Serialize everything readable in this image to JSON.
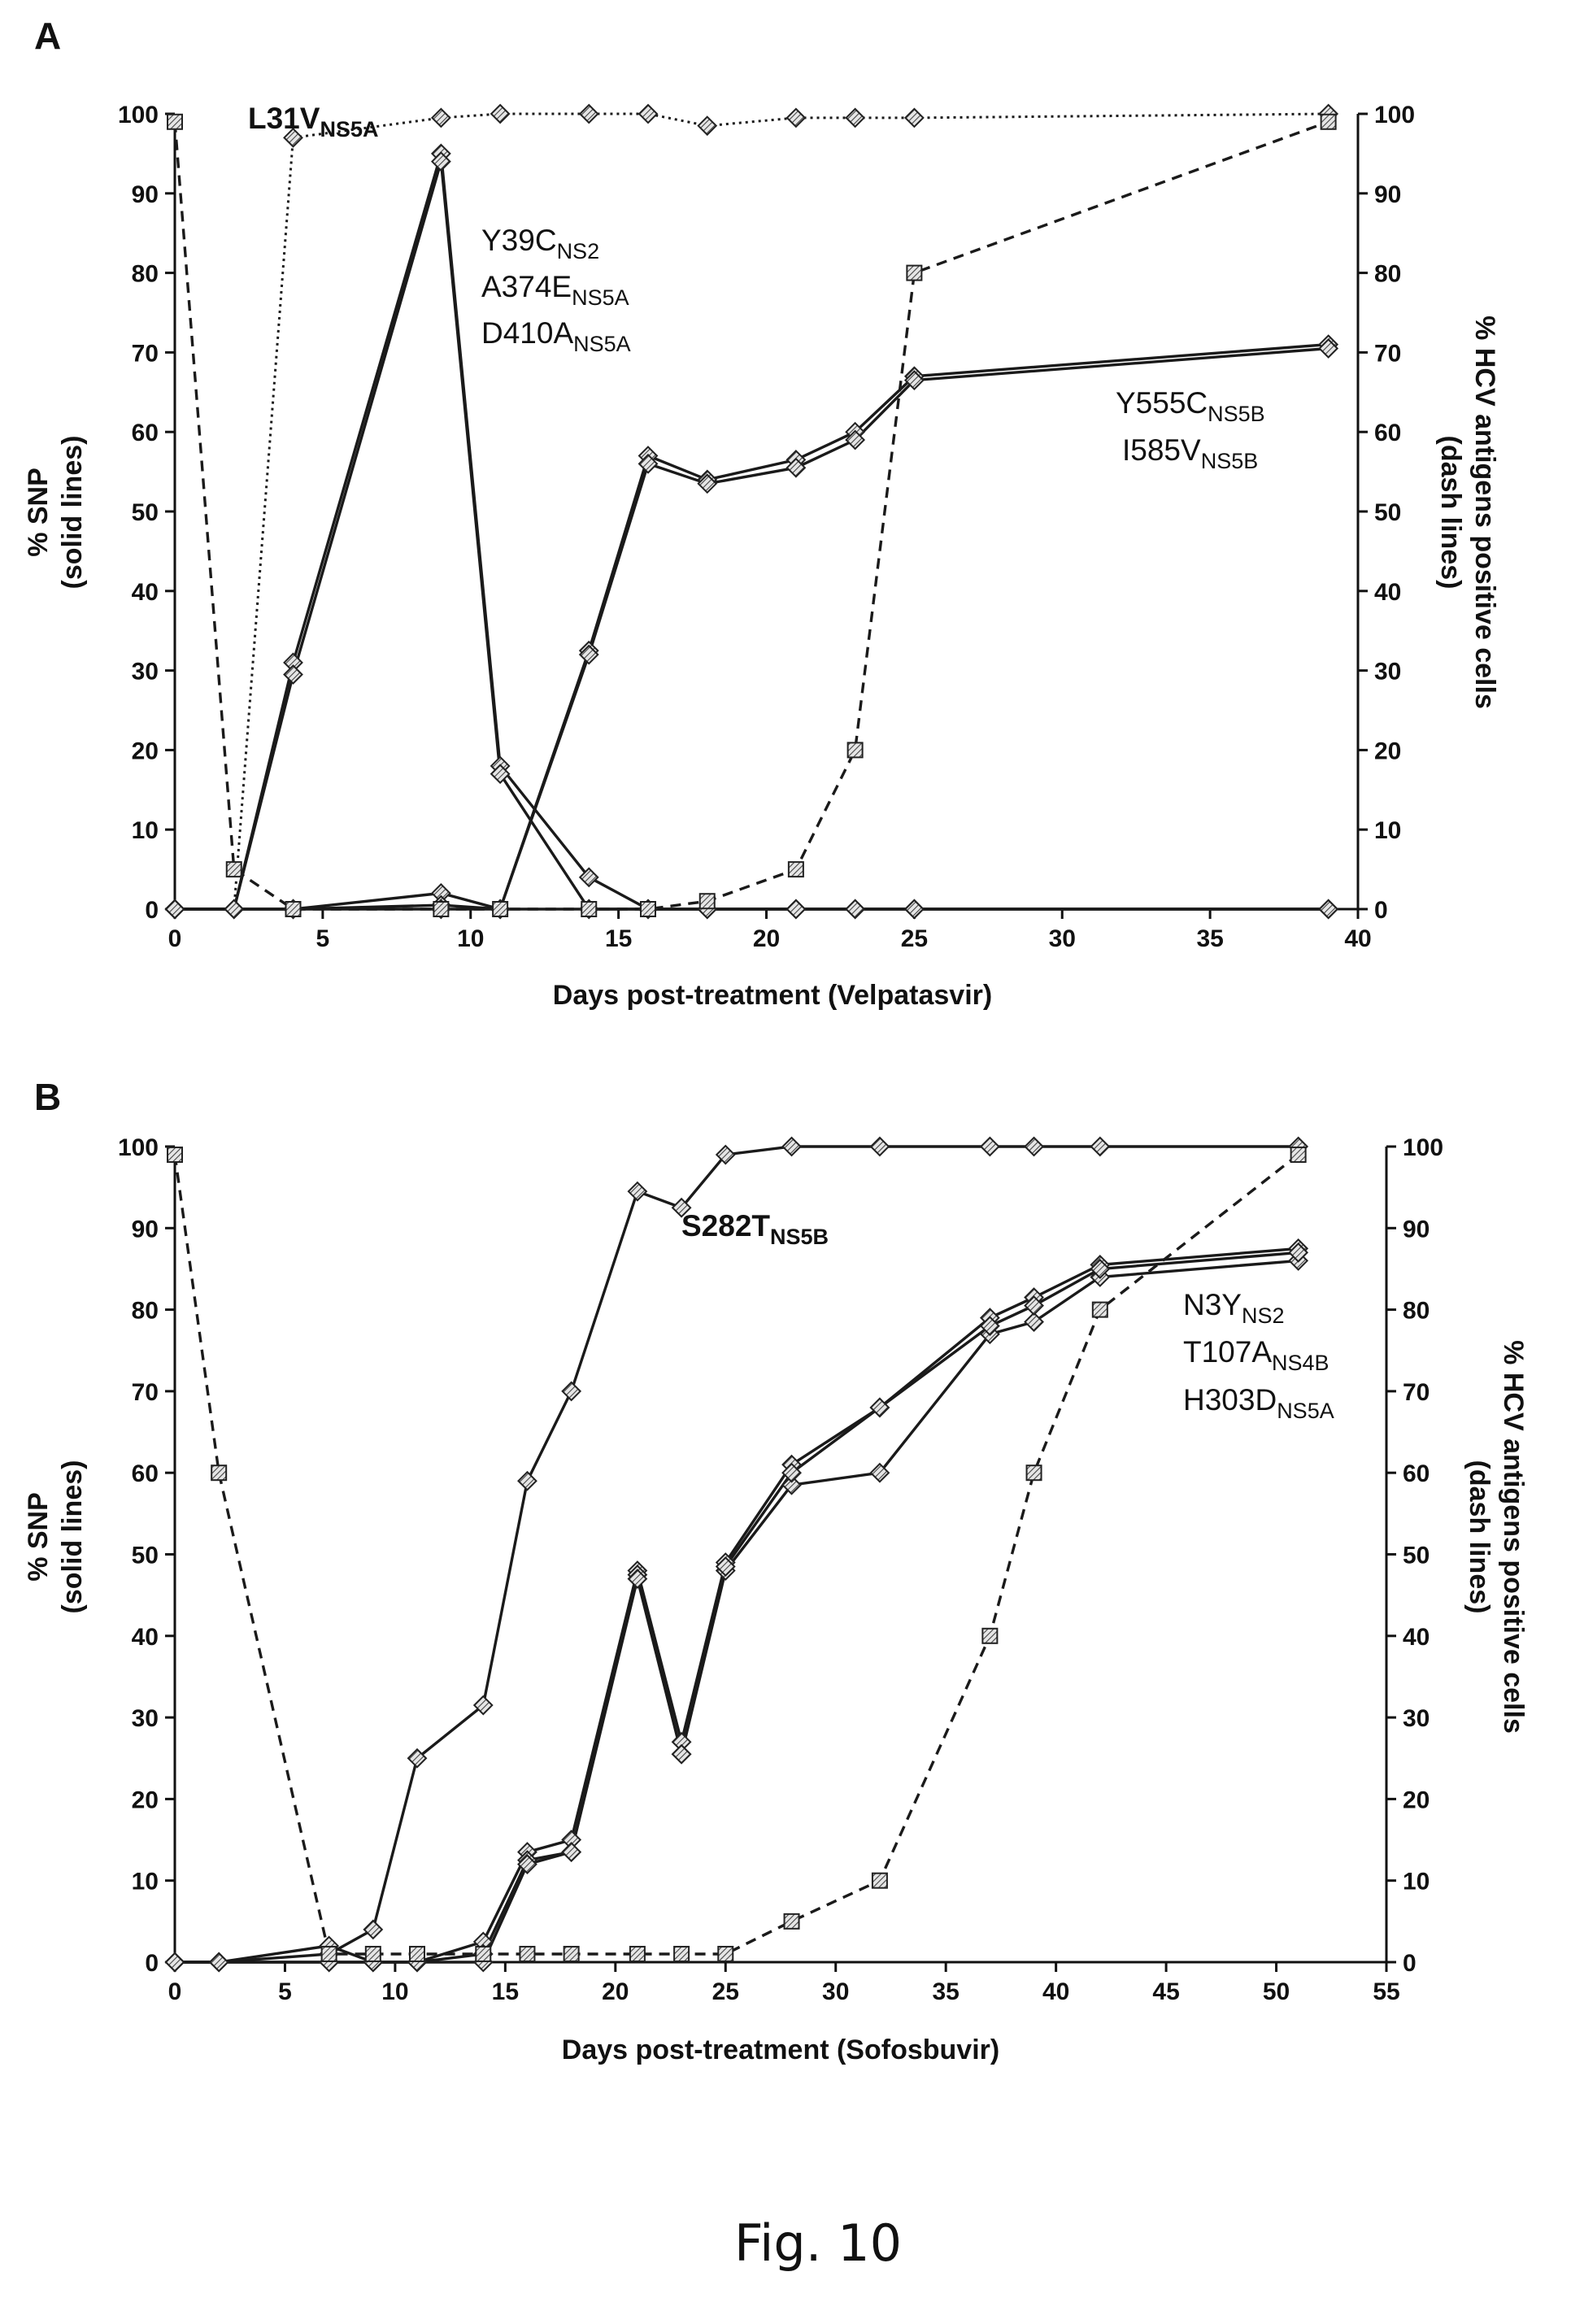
{
  "caption": "Fig. 10",
  "chart_data": [
    {
      "type": "line",
      "panel": "A",
      "xlabel": "Days post-treatment (Velpatasvir)",
      "ylabel": [
        "% SNP",
        "(solid lines)"
      ],
      "y2label": [
        "% HCV antigens positive cells",
        "(dash lines)"
      ],
      "xlim": [
        0,
        40
      ],
      "ylim": [
        0,
        100
      ],
      "y2lim": [
        0,
        100
      ],
      "xticks": [
        0,
        5,
        10,
        15,
        20,
        25,
        30,
        35,
        40
      ],
      "yticks": [
        0,
        10,
        20,
        30,
        40,
        50,
        60,
        70,
        80,
        90,
        100
      ],
      "grid": false,
      "annotations": [
        {
          "id": "l31v",
          "parts": [
            {
              "t": "L31V",
              "sub": false
            },
            {
              "t": "NS5A",
              "sub": true
            }
          ],
          "bold": true
        },
        {
          "id": "y39c",
          "parts": [
            {
              "t": "Y39C",
              "sub": false
            },
            {
              "t": "NS2",
              "sub": true
            }
          ],
          "bold": false
        },
        {
          "id": "a374e",
          "parts": [
            {
              "t": "A374E",
              "sub": false
            },
            {
              "t": "NS5A",
              "sub": true
            }
          ],
          "bold": false
        },
        {
          "id": "d410a",
          "parts": [
            {
              "t": "D410A",
              "sub": false
            },
            {
              "t": "NS5A",
              "sub": true
            }
          ],
          "bold": false
        },
        {
          "id": "y555c",
          "parts": [
            {
              "t": "Y555C",
              "sub": false
            },
            {
              "t": "NS5B",
              "sub": true
            }
          ],
          "bold": false
        },
        {
          "id": "i585v",
          "parts": [
            {
              "t": "I585V",
              "sub": false
            },
            {
              "t": "NS5B",
              "sub": true
            }
          ],
          "bold": false
        }
      ],
      "series": [
        {
          "style": "dotted",
          "marker": "diamond",
          "x": [
            0,
            2,
            4,
            9,
            11,
            14,
            16,
            18,
            21,
            23,
            25,
            39
          ],
          "y": [
            0,
            0,
            97,
            99.5,
            100,
            100,
            100,
            98.5,
            99.5,
            99.5,
            99.5,
            100
          ]
        },
        {
          "style": "solid",
          "marker": "diamond",
          "x": [
            0,
            2,
            4,
            9,
            11,
            14,
            16,
            18,
            21,
            23,
            25,
            39
          ],
          "y": [
            0,
            0,
            31,
            95,
            18,
            4,
            0,
            0,
            0,
            0,
            0,
            0
          ]
        },
        {
          "style": "solid",
          "marker": "diamond",
          "x": [
            0,
            2,
            4,
            9,
            11,
            14,
            16,
            18,
            21,
            23,
            25,
            39
          ],
          "y": [
            0,
            0,
            29.5,
            94,
            17,
            0,
            0,
            0,
            0,
            0,
            0,
            0
          ]
        },
        {
          "style": "solid",
          "marker": "diamond",
          "x": [
            0,
            2,
            4,
            9,
            11,
            14,
            16,
            18,
            21,
            23,
            25,
            39
          ],
          "y": [
            0,
            0,
            0,
            2,
            0,
            0,
            0,
            0,
            0,
            0,
            0,
            0
          ]
        },
        {
          "style": "solid",
          "marker": "diamond",
          "x": [
            0,
            2,
            4,
            9,
            11,
            14,
            16,
            18,
            21,
            23,
            25,
            39
          ],
          "y": [
            0,
            0,
            0,
            0.5,
            0,
            32.5,
            57,
            54,
            56.5,
            60,
            67,
            71
          ]
        },
        {
          "style": "solid",
          "marker": "diamond",
          "x": [
            0,
            2,
            4,
            9,
            11,
            14,
            16,
            18,
            21,
            23,
            25,
            39
          ],
          "y": [
            0,
            0,
            0,
            0,
            0,
            32,
            56,
            53.5,
            55.5,
            59,
            66.5,
            70.5
          ]
        },
        {
          "style": "dashed",
          "marker": "square",
          "axis": "right",
          "x": [
            0,
            2,
            4,
            9,
            11,
            14,
            16,
            18,
            21,
            23,
            25,
            39
          ],
          "y": [
            99,
            5,
            0,
            0,
            0,
            0,
            0,
            1,
            5,
            20,
            80,
            99
          ]
        }
      ]
    },
    {
      "type": "line",
      "panel": "B",
      "xlabel": "Days post-treatment (Sofosbuvir)",
      "ylabel": [
        "% SNP",
        "(solid lines)"
      ],
      "y2label": [
        "% HCV antigens positive cells",
        "(dash lines)"
      ],
      "xlim": [
        0,
        55
      ],
      "ylim": [
        0,
        100
      ],
      "y2lim": [
        0,
        100
      ],
      "xticks": [
        0,
        5,
        10,
        15,
        20,
        25,
        30,
        35,
        40,
        45,
        50,
        55
      ],
      "yticks": [
        0,
        10,
        20,
        30,
        40,
        50,
        60,
        70,
        80,
        90,
        100
      ],
      "grid": false,
      "annotations": [
        {
          "id": "s282t",
          "parts": [
            {
              "t": "S282T",
              "sub": false
            },
            {
              "t": "NS5B",
              "sub": true
            }
          ],
          "bold": true
        },
        {
          "id": "n3y",
          "parts": [
            {
              "t": "N3Y",
              "sub": false
            },
            {
              "t": "NS2",
              "sub": true
            }
          ],
          "bold": false
        },
        {
          "id": "t107a",
          "parts": [
            {
              "t": "T107A",
              "sub": false
            },
            {
              "t": "NS4B",
              "sub": true
            }
          ],
          "bold": false
        },
        {
          "id": "h303d",
          "parts": [
            {
              "t": "H303D",
              "sub": false
            },
            {
              "t": "NS5A",
              "sub": true
            }
          ],
          "bold": false
        }
      ],
      "series": [
        {
          "style": "solid",
          "marker": "diamond",
          "x": [
            0,
            2,
            7,
            9,
            11,
            14,
            16,
            18,
            21,
            23,
            25,
            28,
            32,
            37,
            39,
            42,
            51
          ],
          "y": [
            0,
            0,
            1,
            4,
            25,
            31.5,
            59,
            70,
            94.5,
            92.5,
            99,
            100,
            100,
            100,
            100,
            100,
            100
          ]
        },
        {
          "style": "solid",
          "marker": "diamond",
          "x": [
            0,
            2,
            7,
            9,
            11,
            14,
            16,
            18,
            21,
            23,
            25,
            28,
            32,
            37,
            39,
            42,
            51
          ],
          "y": [
            0,
            0,
            2,
            0,
            0,
            2.5,
            13.5,
            15,
            48,
            27,
            49,
            61,
            68,
            79,
            81.5,
            85.5,
            87.5
          ]
        },
        {
          "style": "solid",
          "marker": "diamond",
          "x": [
            0,
            2,
            7,
            9,
            11,
            14,
            16,
            18,
            21,
            23,
            25,
            28,
            32,
            37,
            39,
            42,
            51
          ],
          "y": [
            0,
            0,
            0,
            0,
            0,
            1,
            12.5,
            13.5,
            47.5,
            25.5,
            48,
            58.5,
            60,
            77,
            78.5,
            84,
            86
          ]
        },
        {
          "style": "solid",
          "marker": "diamond",
          "x": [
            0,
            2,
            7,
            9,
            11,
            14,
            16,
            18,
            21,
            23,
            25,
            28,
            32,
            37,
            39,
            42,
            51
          ],
          "y": [
            0,
            0,
            0,
            0,
            0,
            0,
            12,
            13.5,
            47,
            25.5,
            48.5,
            60,
            68,
            78,
            80.5,
            85,
            87
          ]
        },
        {
          "style": "dashed",
          "marker": "square",
          "axis": "right",
          "x": [
            0,
            2,
            7,
            9,
            11,
            14,
            16,
            18,
            21,
            23,
            25,
            28,
            32,
            37,
            39,
            42,
            51
          ],
          "y": [
            99,
            60,
            1,
            1,
            1,
            1,
            1,
            1,
            1,
            1,
            1,
            5,
            10,
            40,
            60,
            80,
            99
          ]
        }
      ]
    }
  ]
}
